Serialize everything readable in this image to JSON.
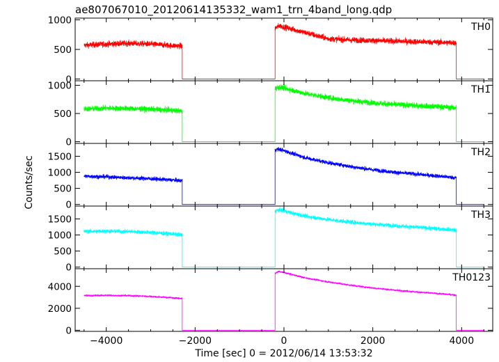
{
  "title": "ae807067010_20120614135332_wam1_trn_4band_long.qdp",
  "xlabel": "Time [sec] 0 = 2012/06/14 13:53:32",
  "ylabel": "Counts/sec",
  "chart_data": {
    "type": "line",
    "x_range": [
      -4700,
      4700
    ],
    "x_ticks": [
      -4000,
      -2000,
      0,
      2000,
      4000
    ],
    "x_tick_labels": [
      "−4000",
      "−2000",
      "0",
      "2000",
      "4000"
    ],
    "panels": [
      {
        "name": "TH0",
        "color": "#ff0000",
        "ylim": [
          -30,
          1030
        ],
        "y_ticks": [
          0,
          500,
          1000
        ],
        "segments": [
          {
            "x": [
              -4500,
              -4000,
              -3500,
              -3000,
              -2500,
              -2290
            ],
            "y": [
              570,
              590,
              605,
              590,
              565,
              555
            ],
            "noise": 35
          },
          {
            "x": [
              -2290,
              -200
            ],
            "y": [
              0,
              0
            ],
            "noise": 0
          },
          {
            "x": [
              -200,
              -100,
              100,
              500,
              1000,
              1500,
              2000,
              2500,
              3000,
              3500,
              3880
            ],
            "y": [
              860,
              900,
              860,
              780,
              680,
              660,
              650,
              640,
              630,
              620,
              610
            ],
            "noise": 35
          },
          {
            "x": [
              3880,
              4500
            ],
            "y": [
              0,
              0
            ],
            "noise": 0
          }
        ]
      },
      {
        "name": "TH1",
        "color": "#00ff00",
        "ylim": [
          -30,
          1080
        ],
        "y_ticks": [
          0,
          500,
          1000
        ],
        "segments": [
          {
            "x": [
              -4500,
              -4000,
              -3500,
              -3000,
              -2500,
              -2290
            ],
            "y": [
              580,
              595,
              590,
              575,
              555,
              540
            ],
            "noise": 35
          },
          {
            "x": [
              -2290,
              -200
            ],
            "y": [
              0,
              0
            ],
            "noise": 0
          },
          {
            "x": [
              -200,
              -100,
              200,
              500,
              1000,
              1500,
              2000,
              2500,
              3000,
              3500,
              3880
            ],
            "y": [
              940,
              970,
              910,
              850,
              780,
              730,
              690,
              660,
              640,
              620,
              600
            ],
            "noise": 35
          },
          {
            "x": [
              3880,
              4500
            ],
            "y": [
              0,
              0
            ],
            "noise": 0
          }
        ]
      },
      {
        "name": "TH2",
        "color": "#0000ff",
        "ylim": [
          -50,
          1900
        ],
        "y_ticks": [
          0,
          500,
          1000,
          1500
        ],
        "y_tick_labels": [
          "0",
          "500",
          "1000",
          "1500"
        ],
        "segments": [
          {
            "x": [
              -4500,
              -4000,
              -3500,
              -3000,
              -2500,
              -2290
            ],
            "y": [
              880,
              860,
              830,
              800,
              760,
              740
            ],
            "noise": 45
          },
          {
            "x": [
              -2290,
              -200
            ],
            "y": [
              0,
              0
            ],
            "noise": 0
          },
          {
            "x": [
              -200,
              -100,
              200,
              500,
              1000,
              1500,
              2000,
              2500,
              3000,
              3500,
              3880
            ],
            "y": [
              1700,
              1720,
              1580,
              1450,
              1300,
              1180,
              1080,
              1000,
              940,
              880,
              830
            ],
            "noise": 45
          },
          {
            "x": [
              3880,
              4500
            ],
            "y": [
              0,
              0
            ],
            "noise": 0
          }
        ]
      },
      {
        "name": "TH3",
        "color": "#00ffff",
        "ylim": [
          -50,
          1900
        ],
        "y_ticks": [
          0,
          500,
          1000,
          1500
        ],
        "y_tick_labels": [
          "0",
          "500",
          "1000",
          "1500"
        ],
        "segments": [
          {
            "x": [
              -4500,
              -4000,
              -3500,
              -3000,
              -2500,
              -2290
            ],
            "y": [
              1110,
              1120,
              1110,
              1080,
              1030,
              1000
            ],
            "noise": 45
          },
          {
            "x": [
              -2290,
              -200
            ],
            "y": [
              0,
              0
            ],
            "noise": 0
          },
          {
            "x": [
              -200,
              -100,
              200,
              500,
              1000,
              1500,
              2000,
              2500,
              3000,
              3500,
              3880
            ],
            "y": [
              1750,
              1780,
              1680,
              1580,
              1480,
              1400,
              1340,
              1290,
              1240,
              1190,
              1150
            ],
            "noise": 45
          },
          {
            "x": [
              3880,
              4500
            ],
            "y": [
              0,
              0
            ],
            "noise": 0
          }
        ]
      },
      {
        "name": "TH0123",
        "color": "#ff00ff",
        "ylim": [
          -100,
          5600
        ],
        "y_ticks": [
          0,
          2000,
          4000
        ],
        "y_tick_labels": [
          "0",
          "2000",
          "4000"
        ],
        "segments": [
          {
            "x": [
              -4500,
              -4000,
              -3500,
              -3000,
              -2500,
              -2290
            ],
            "y": [
              3150,
              3180,
              3150,
              3080,
              2950,
              2880
            ],
            "noise": 55
          },
          {
            "x": [
              -2290,
              -200
            ],
            "y": [
              0,
              0
            ],
            "noise": 0
          },
          {
            "x": [
              -200,
              -100,
              200,
              500,
              1000,
              1500,
              2000,
              2500,
              3000,
              3500,
              3880
            ],
            "y": [
              5200,
              5350,
              5050,
              4750,
              4400,
              4100,
              3850,
              3650,
              3480,
              3330,
              3200
            ],
            "noise": 55
          },
          {
            "x": [
              3880,
              4500
            ],
            "y": [
              0,
              0
            ],
            "noise": 0
          }
        ]
      }
    ]
  }
}
